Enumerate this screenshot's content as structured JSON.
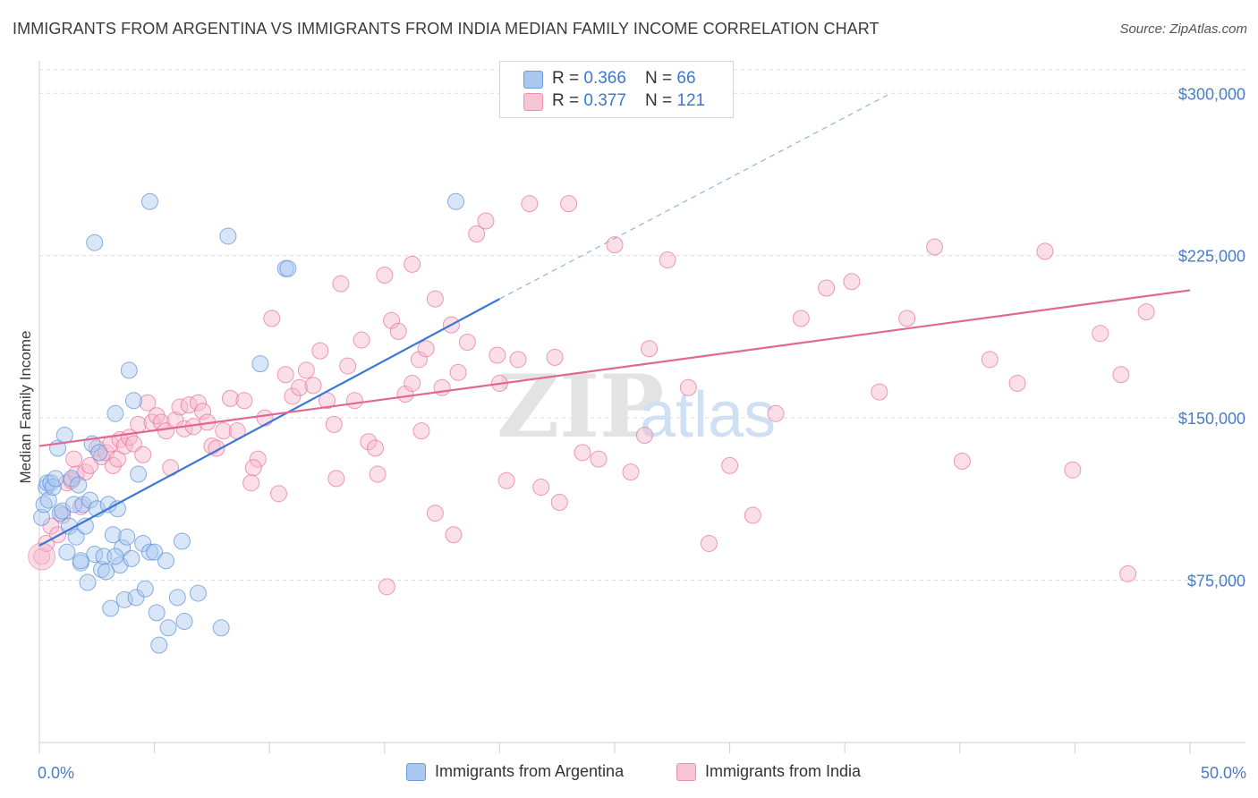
{
  "header": {
    "title": "IMMIGRANTS FROM ARGENTINA VS IMMIGRANTS FROM INDIA MEDIAN FAMILY INCOME CORRELATION CHART",
    "source": "Source: ZipAtlas.com"
  },
  "watermark": {
    "zip": "ZIP",
    "atlas": "atlas"
  },
  "legend_top": [
    {
      "r_label": "R = ",
      "r_value": "0.366",
      "n_label": "N = ",
      "n_value": "66",
      "color": "#a9c8f0"
    },
    {
      "r_label": "R = ",
      "r_value": "0.377",
      "n_label": "N = ",
      "n_value": "121",
      "color": "#f6b8cb"
    }
  ],
  "chart_data": {
    "type": "scatter",
    "title": "IMMIGRANTS FROM ARGENTINA VS IMMIGRANTS FROM INDIA MEDIAN FAMILY INCOME CORRELATION CHART",
    "xlabel": "",
    "ylabel": "Median Family Income",
    "xlim": [
      0,
      50
    ],
    "ylim": [
      0,
      315000
    ],
    "x_tick_labels": [
      "0.0%",
      "50.0%"
    ],
    "y_ticks": [
      75000,
      150000,
      225000,
      300000
    ],
    "y_tick_labels": [
      "$75,000",
      "$150,000",
      "$225,000",
      "$300,000"
    ],
    "grid": "horizontal dashed",
    "legend_position": "bottom",
    "series": [
      {
        "name": "Immigrants from Argentina",
        "color": "#5b8fd6",
        "fill": "#a9c8f0",
        "trend": {
          "x": [
            0,
            20
          ],
          "y": [
            91000,
            205000
          ],
          "dashed_to": [
            37,
            300000
          ]
        },
        "points": [
          [
            0.1,
            104000
          ],
          [
            0.2,
            110000
          ],
          [
            0.3,
            118000
          ],
          [
            0.35,
            120000
          ],
          [
            0.4,
            112000
          ],
          [
            0.5,
            120000
          ],
          [
            0.6,
            118000
          ],
          [
            0.7,
            122000
          ],
          [
            0.8,
            136000
          ],
          [
            0.9,
            106000
          ],
          [
            1.0,
            107000
          ],
          [
            1.1,
            142000
          ],
          [
            1.2,
            88000
          ],
          [
            1.3,
            100000
          ],
          [
            1.4,
            122000
          ],
          [
            1.5,
            110000
          ],
          [
            1.6,
            95000
          ],
          [
            1.7,
            119000
          ],
          [
            1.8,
            83000
          ],
          [
            1.9,
            110000
          ],
          [
            2.0,
            100000
          ],
          [
            2.1,
            74000
          ],
          [
            2.2,
            112000
          ],
          [
            2.3,
            138000
          ],
          [
            2.4,
            87000
          ],
          [
            2.5,
            108000
          ],
          [
            2.6,
            134000
          ],
          [
            2.7,
            80000
          ],
          [
            2.8,
            86000
          ],
          [
            2.9,
            79000
          ],
          [
            3.0,
            110000
          ],
          [
            3.1,
            62000
          ],
          [
            3.2,
            96000
          ],
          [
            3.3,
            152000
          ],
          [
            3.4,
            108000
          ],
          [
            3.5,
            82000
          ],
          [
            3.6,
            90000
          ],
          [
            3.7,
            66000
          ],
          [
            3.8,
            95000
          ],
          [
            3.9,
            172000
          ],
          [
            4.0,
            85000
          ],
          [
            4.1,
            158000
          ],
          [
            4.2,
            67000
          ],
          [
            4.3,
            124000
          ],
          [
            4.5,
            92000
          ],
          [
            4.6,
            71000
          ],
          [
            4.8,
            88000
          ],
          [
            5.0,
            88000
          ],
          [
            5.1,
            60000
          ],
          [
            5.2,
            45000
          ],
          [
            5.5,
            84000
          ],
          [
            5.6,
            53000
          ],
          [
            6.0,
            67000
          ],
          [
            6.2,
            93000
          ],
          [
            6.3,
            56000
          ],
          [
            6.9,
            69000
          ],
          [
            7.9,
            53000
          ],
          [
            2.4,
            231000
          ],
          [
            4.8,
            250000
          ],
          [
            8.2,
            234000
          ],
          [
            9.6,
            175000
          ],
          [
            10.7,
            219000
          ],
          [
            10.8,
            219000
          ],
          [
            18.1,
            250000
          ],
          [
            1.8,
            84000
          ],
          [
            3.3,
            86000
          ]
        ]
      },
      {
        "name": "Immigrants from India",
        "color": "#e8709a",
        "fill": "#f6b8cb",
        "trend": {
          "x": [
            0,
            50
          ],
          "y": [
            137000,
            209000
          ]
        },
        "points": [
          [
            0.1,
            86000
          ],
          [
            0.3,
            92000
          ],
          [
            0.5,
            100000
          ],
          [
            0.8,
            96000
          ],
          [
            1.0,
            105000
          ],
          [
            1.2,
            120000
          ],
          [
            1.4,
            121000
          ],
          [
            1.5,
            131000
          ],
          [
            1.6,
            124000
          ],
          [
            1.8,
            109000
          ],
          [
            2.0,
            125000
          ],
          [
            2.2,
            128000
          ],
          [
            2.5,
            136000
          ],
          [
            2.7,
            132000
          ],
          [
            2.9,
            134000
          ],
          [
            3.1,
            138000
          ],
          [
            3.2,
            128000
          ],
          [
            3.4,
            131000
          ],
          [
            3.5,
            140000
          ],
          [
            3.7,
            137000
          ],
          [
            3.9,
            141000
          ],
          [
            4.1,
            138000
          ],
          [
            4.3,
            147000
          ],
          [
            4.5,
            133000
          ],
          [
            4.7,
            157000
          ],
          [
            4.9,
            148000
          ],
          [
            5.1,
            151000
          ],
          [
            5.3,
            148000
          ],
          [
            5.5,
            144000
          ],
          [
            5.7,
            127000
          ],
          [
            5.9,
            149000
          ],
          [
            6.1,
            155000
          ],
          [
            6.3,
            145000
          ],
          [
            6.5,
            156000
          ],
          [
            6.7,
            146000
          ],
          [
            6.9,
            157000
          ],
          [
            7.1,
            153000
          ],
          [
            7.3,
            148000
          ],
          [
            7.5,
            137000
          ],
          [
            7.7,
            136000
          ],
          [
            8.0,
            144000
          ],
          [
            8.3,
            159000
          ],
          [
            8.6,
            144000
          ],
          [
            8.9,
            158000
          ],
          [
            9.2,
            120000
          ],
          [
            9.5,
            131000
          ],
          [
            9.8,
            150000
          ],
          [
            10.1,
            196000
          ],
          [
            10.4,
            115000
          ],
          [
            10.7,
            170000
          ],
          [
            11.0,
            160000
          ],
          [
            11.3,
            164000
          ],
          [
            11.6,
            172000
          ],
          [
            11.9,
            165000
          ],
          [
            12.2,
            181000
          ],
          [
            12.5,
            158000
          ],
          [
            12.8,
            147000
          ],
          [
            13.1,
            212000
          ],
          [
            13.4,
            174000
          ],
          [
            13.7,
            158000
          ],
          [
            14.0,
            186000
          ],
          [
            14.3,
            139000
          ],
          [
            14.7,
            124000
          ],
          [
            15.0,
            216000
          ],
          [
            15.3,
            195000
          ],
          [
            15.6,
            190000
          ],
          [
            15.9,
            161000
          ],
          [
            16.2,
            221000
          ],
          [
            16.5,
            177000
          ],
          [
            16.8,
            182000
          ],
          [
            17.2,
            205000
          ],
          [
            17.5,
            164000
          ],
          [
            17.9,
            193000
          ],
          [
            18.2,
            171000
          ],
          [
            18.6,
            185000
          ],
          [
            19.0,
            235000
          ],
          [
            19.4,
            241000
          ],
          [
            19.9,
            179000
          ],
          [
            20.3,
            121000
          ],
          [
            20.8,
            177000
          ],
          [
            21.3,
            249000
          ],
          [
            21.8,
            118000
          ],
          [
            22.4,
            178000
          ],
          [
            23.0,
            249000
          ],
          [
            23.6,
            134000
          ],
          [
            24.3,
            131000
          ],
          [
            25.0,
            230000
          ],
          [
            25.7,
            125000
          ],
          [
            26.5,
            182000
          ],
          [
            27.3,
            223000
          ],
          [
            28.2,
            164000
          ],
          [
            29.1,
            92000
          ],
          [
            30.0,
            128000
          ],
          [
            31.0,
            105000
          ],
          [
            32.0,
            152000
          ],
          [
            33.1,
            196000
          ],
          [
            34.2,
            210000
          ],
          [
            35.3,
            213000
          ],
          [
            36.5,
            162000
          ],
          [
            37.7,
            196000
          ],
          [
            38.9,
            229000
          ],
          [
            40.1,
            130000
          ],
          [
            41.3,
            177000
          ],
          [
            42.5,
            166000
          ],
          [
            43.7,
            227000
          ],
          [
            44.9,
            126000
          ],
          [
            46.1,
            189000
          ],
          [
            47.3,
            78000
          ],
          [
            47.0,
            170000
          ],
          [
            48.1,
            199000
          ],
          [
            15.1,
            72000
          ],
          [
            16.2,
            166000
          ],
          [
            17.2,
            106000
          ],
          [
            18.0,
            96000
          ],
          [
            20.0,
            166000
          ],
          [
            12.9,
            122000
          ],
          [
            14.6,
            136000
          ],
          [
            9.3,
            127000
          ],
          [
            22.6,
            111000
          ],
          [
            26.3,
            142000
          ],
          [
            16.6,
            144000
          ]
        ]
      }
    ]
  }
}
